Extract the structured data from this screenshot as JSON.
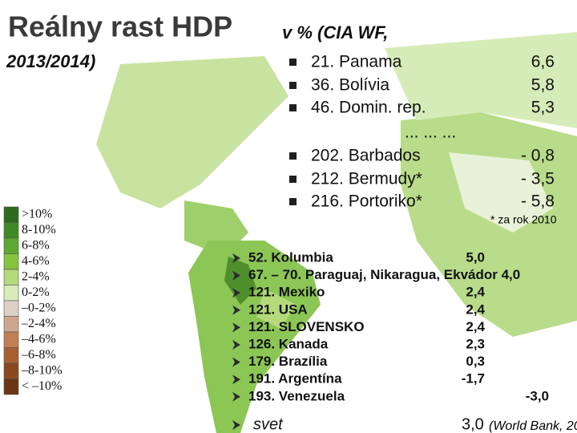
{
  "header": {
    "title": "Reálny rast HDP",
    "subtitle_line1": "v % (CIA WF,",
    "subtitle_line2": "2013/2014)"
  },
  "top_list": {
    "items": [
      {
        "label": "21. Panama",
        "value": "6,6"
      },
      {
        "label": "36. Bolívia",
        "value": "5,8"
      },
      {
        "label": "46. Domin. rep.",
        "value": "5,3"
      },
      {
        "label": "202. Barbados",
        "value": "- 0,8"
      },
      {
        "label": "212. Bermudy*",
        "value": "- 3,5"
      },
      {
        "label": "216. Portoriko*",
        "value": "- 5,8"
      }
    ],
    "separator": "... ... ...",
    "footnote": "* za rok 2010"
  },
  "americas_list": {
    "items": [
      {
        "label": "52. Kolumbia",
        "value": "5,0"
      },
      {
        "label": "67. – 70. Paraguaj, Nikaragua, Ekvádor 4,0"
      },
      {
        "label": "121. Mexiko",
        "value": "2,4"
      },
      {
        "label": "121. USA",
        "value": "2,4"
      },
      {
        "label": "121. SLOVENSKO",
        "value": "2,4"
      },
      {
        "label": "126. Kanada",
        "value": "2,3"
      },
      {
        "label": "179. Brazília",
        "value": "0,3"
      },
      {
        "label": "191. Argentína",
        "value": "-1,7"
      },
      {
        "label": "193. Venezuela",
        "value": "-3,0"
      }
    ],
    "world": {
      "label": "svet",
      "value": "3,0",
      "source": "(World Bank, 20"
    }
  },
  "legend": {
    "items": [
      {
        "label": ">10%",
        "color": "#2e6b1e"
      },
      {
        "label": "8-10%",
        "color": "#3f8a25"
      },
      {
        "label": "6-8%",
        "color": "#5da832"
      },
      {
        "label": "4-6%",
        "color": "#86c440"
      },
      {
        "label": "2-4%",
        "color": "#b4da7c"
      },
      {
        "label": "0-2%",
        "color": "#d9ebb9"
      },
      {
        "label": "–0-2%",
        "color": "#ddd0c8"
      },
      {
        "label": "–2-4%",
        "color": "#cfa68d"
      },
      {
        "label": "–4-6%",
        "color": "#c07f53"
      },
      {
        "label": "–6-8%",
        "color": "#a86030"
      },
      {
        "label": "–8-10%",
        "color": "#8a4a1f"
      },
      {
        "label": "< –10%",
        "color": "#6b3612"
      }
    ]
  }
}
